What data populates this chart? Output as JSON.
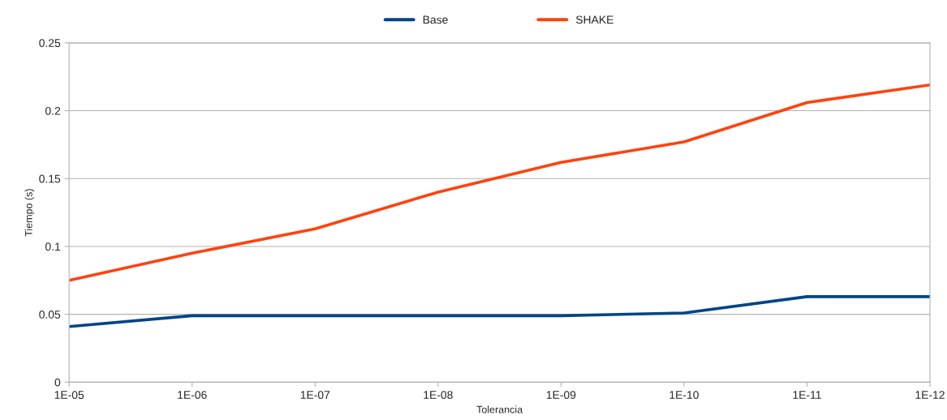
{
  "chart_data": {
    "type": "line",
    "xlabel": "Tolerancia",
    "ylabel": "Tiempo (s)",
    "categories": [
      "1E-05",
      "1E-06",
      "1E-07",
      "1E-08",
      "1E-09",
      "1E-10",
      "1E-11",
      "1E-12"
    ],
    "series": [
      {
        "name": "Base",
        "color": "#004586",
        "values": [
          0.041,
          0.049,
          0.049,
          0.049,
          0.049,
          0.051,
          0.063,
          0.063
        ]
      },
      {
        "name": "SHAKE",
        "color": "#ff420e",
        "values": [
          0.075,
          0.095,
          0.113,
          0.14,
          0.162,
          0.177,
          0.206,
          0.219
        ]
      }
    ],
    "ylim": [
      0,
      0.25
    ],
    "yticks": [
      {
        "value": 0,
        "label": "0"
      },
      0.05,
      0.1,
      0.15,
      0.2,
      0.25
    ],
    "grid": "y",
    "legend": "top",
    "marker": "none",
    "line_style": "solid"
  }
}
